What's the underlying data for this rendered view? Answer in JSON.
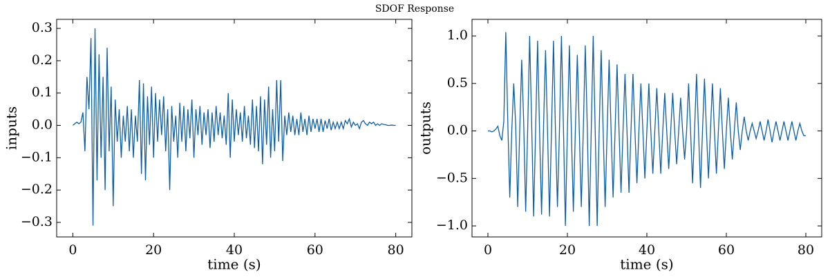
{
  "title": "SDOF Response",
  "chart_data": [
    {
      "type": "line",
      "x_label": "time (s)",
      "y_label": "inputs",
      "color": "#0c5da5",
      "xlim": [
        -4,
        84
      ],
      "ylim": [
        -0.345,
        0.328
      ],
      "xticks": [
        0,
        20,
        40,
        60,
        80
      ],
      "yticks": [
        {
          "value": -0.3,
          "label": "−0.3"
        },
        {
          "value": -0.2,
          "label": "−0.2"
        },
        {
          "value": -0.1,
          "label": "−0.1"
        },
        {
          "value": 0,
          "label": "0.0"
        },
        0.1,
        0.2,
        0.3
      ],
      "x": [
        0,
        0.5,
        1,
        1.5,
        2,
        2.5,
        3,
        3.5,
        4,
        4.5,
        5,
        5.5,
        6,
        6.5,
        7,
        7.5,
        8,
        8.5,
        9,
        9.5,
        10,
        10.5,
        11,
        11.5,
        12,
        12.5,
        13,
        13.5,
        14,
        14.5,
        15,
        15.5,
        16,
        16.5,
        17,
        17.5,
        18,
        18.5,
        19,
        19.5,
        20,
        20.5,
        21,
        21.5,
        22,
        22.5,
        23,
        23.5,
        24,
        24.5,
        25,
        25.5,
        26,
        26.5,
        27,
        27.5,
        28,
        28.5,
        29,
        29.5,
        30,
        30.5,
        31,
        31.5,
        32,
        32.5,
        33,
        33.5,
        34,
        34.5,
        35,
        35.5,
        36,
        36.5,
        37,
        37.5,
        38,
        38.5,
        39,
        39.5,
        40,
        40.5,
        41,
        41.5,
        42,
        42.5,
        43,
        43.5,
        44,
        44.5,
        45,
        45.5,
        46,
        46.5,
        47,
        47.5,
        48,
        48.5,
        49,
        49.5,
        50,
        50.5,
        51,
        51.5,
        52,
        52.5,
        53,
        53.5,
        54,
        54.5,
        55,
        55.5,
        56,
        56.5,
        57,
        57.5,
        58,
        58.5,
        59,
        59.5,
        60,
        60.5,
        61,
        61.5,
        62,
        62.5,
        63,
        63.5,
        64,
        64.5,
        65,
        65.5,
        66,
        66.5,
        67,
        67.5,
        68,
        68.5,
        69,
        69.5,
        70,
        70.5,
        71,
        71.5,
        72,
        72.5,
        73,
        73.5,
        74,
        74.5,
        75,
        75.5,
        76,
        76.5,
        77,
        77.5,
        78,
        78.5,
        79,
        79.5,
        80
      ],
      "values": [
        0,
        0.005,
        0.01,
        0.005,
        0.01,
        0.04,
        -0.08,
        0.15,
        0.05,
        0.27,
        -0.31,
        0.3,
        -0.17,
        0.22,
        -0.1,
        0.15,
        -0.2,
        0.24,
        -0.08,
        0.12,
        -0.25,
        0.08,
        -0.05,
        0.05,
        -0.1,
        0.03,
        -0.05,
        0.06,
        -0.08,
        0.05,
        -0.1,
        0.03,
        -0.05,
        0.14,
        -0.15,
        0.13,
        -0.17,
        0.09,
        -0.06,
        0.12,
        -0.1,
        0.1,
        -0.05,
        0.08,
        -0.03,
        0.09,
        -0.08,
        0.05,
        -0.2,
        0.06,
        -0.05,
        0.03,
        -0.1,
        0.07,
        -0.05,
        0.06,
        -0.08,
        0.05,
        -0.04,
        0.08,
        -0.1,
        0.05,
        -0.03,
        0.06,
        -0.06,
        0.04,
        -0.03,
        0.05,
        -0.07,
        0.04,
        -0.05,
        0.06,
        -0.03,
        0.04,
        -0.04,
        0.03,
        -0.06,
        0.1,
        -0.1,
        0.08,
        -0.05,
        0.05,
        -0.03,
        0.04,
        -0.05,
        0.06,
        -0.04,
        0.03,
        -0.06,
        0.08,
        -0.07,
        0.06,
        -0.08,
        0.09,
        -0.12,
        0.08,
        -0.06,
        0.12,
        -0.1,
        0.05,
        -0.08,
        0.14,
        -0.05,
        0.14,
        -0.11,
        0.03,
        -0.03,
        0.04,
        -0.02,
        0.03,
        -0.03,
        0.02,
        -0.03,
        0.04,
        -0.02,
        0.02,
        -0.03,
        0.03,
        -0.02,
        0.02,
        -0.01,
        0.02,
        -0.02,
        0.02,
        -0.02,
        0.015,
        -0.01,
        0.02,
        -0.015,
        0.01,
        -0.01,
        0.01,
        -0.01,
        0.01,
        -0.01,
        0.015,
        0.005,
        0.02,
        -0.005,
        0.01,
        0,
        0.005,
        -0.01,
        0.01,
        0.015,
        0.005,
        0,
        0.01,
        0.005,
        0.01,
        0,
        0.005,
        0,
        0.005,
        0.003,
        0.002,
        0,
        0,
        0.001,
        0,
        0
      ]
    },
    {
      "type": "line",
      "x_label": "time (s)",
      "y_label": "outputs",
      "color": "#0c5da5",
      "xlim": [
        -4,
        84
      ],
      "ylim": [
        -1.116,
        1.175
      ],
      "xticks": [
        0,
        20,
        40,
        60,
        80
      ],
      "yticks": [
        {
          "value": -1,
          "label": "−1.0"
        },
        {
          "value": -0.5,
          "label": "−0.5"
        },
        {
          "value": 0,
          "label": "0.0"
        },
        0.5,
        {
          "value": 1,
          "label": "1.0"
        }
      ],
      "x": [
        0,
        0.5,
        1,
        1.5,
        2,
        2.5,
        3,
        3.5,
        4,
        4.5,
        5,
        5.5,
        6,
        6.5,
        7,
        7.5,
        8,
        8.5,
        9,
        9.5,
        10,
        10.5,
        11,
        11.5,
        12,
        12.5,
        13,
        13.5,
        14,
        14.5,
        15,
        15.5,
        16,
        16.5,
        17,
        17.5,
        18,
        18.5,
        19,
        19.5,
        20,
        20.5,
        21,
        21.5,
        22,
        22.5,
        23,
        23.5,
        24,
        24.5,
        25,
        25.5,
        26,
        26.5,
        27,
        27.5,
        28,
        28.5,
        29,
        29.5,
        30,
        30.5,
        31,
        31.5,
        32,
        32.5,
        33,
        33.5,
        34,
        34.5,
        35,
        35.5,
        36,
        36.5,
        37,
        37.5,
        38,
        38.5,
        39,
        39.5,
        40,
        40.5,
        41,
        41.5,
        42,
        42.5,
        43,
        43.5,
        44,
        44.5,
        45,
        45.5,
        46,
        46.5,
        47,
        47.5,
        48,
        48.5,
        49,
        49.5,
        50,
        50.5,
        51,
        51.5,
        52,
        52.5,
        53,
        53.5,
        54,
        54.5,
        55,
        55.5,
        56,
        56.5,
        57,
        57.5,
        58,
        58.5,
        59,
        59.5,
        60,
        60.5,
        61,
        61.5,
        62,
        62.5,
        63,
        63.5,
        64,
        64.5,
        65,
        65.5,
        66,
        66.5,
        67,
        67.5,
        68,
        68.5,
        69,
        69.5,
        70,
        70.5,
        71,
        71.5,
        72,
        72.5,
        73,
        73.5,
        74,
        74.5,
        75,
        75.5,
        76,
        76.5,
        77,
        77.5,
        78,
        78.5,
        79,
        79.5,
        80
      ],
      "values": [
        0,
        0,
        -0.01,
        0,
        0.02,
        0.05,
        -0.05,
        -0.1,
        0.1,
        1.04,
        0.1,
        -0.7,
        0,
        0.5,
        0.05,
        -0.8,
        0,
        0.75,
        0.1,
        -0.85,
        0,
        1.0,
        0.1,
        -0.9,
        0,
        0.95,
        0,
        -0.88,
        0.05,
        0.85,
        0,
        -0.9,
        0,
        0.95,
        0,
        -0.8,
        0,
        1.0,
        0.05,
        -1.0,
        0,
        0.9,
        0,
        -0.85,
        0,
        0.8,
        0,
        -0.8,
        0,
        0.9,
        0.05,
        -1.0,
        0,
        1.0,
        0,
        -1.0,
        0,
        0.85,
        0,
        -0.8,
        0,
        0.75,
        0,
        -0.7,
        0,
        0.7,
        0,
        -0.65,
        0,
        0.6,
        0,
        -0.65,
        0,
        0.6,
        0,
        -0.55,
        0,
        0.5,
        0,
        -0.5,
        0,
        0.5,
        0,
        -0.45,
        0,
        0.45,
        0,
        -0.45,
        0,
        0.4,
        0,
        -0.4,
        0,
        0.4,
        0,
        -0.35,
        0,
        0.35,
        0,
        -0.3,
        0,
        0.5,
        0,
        -0.55,
        0,
        0.6,
        0,
        -0.6,
        0,
        0.55,
        0,
        -0.5,
        0,
        0.5,
        0,
        -0.45,
        0,
        0.45,
        0,
        -0.4,
        0,
        0.35,
        0,
        -0.3,
        0,
        0.3,
        0,
        -0.2,
        0,
        0.15,
        0,
        -0.1,
        0,
        0.08,
        0,
        -0.08,
        0,
        0.1,
        0,
        -0.1,
        0,
        0.12,
        0,
        -0.12,
        0,
        0.1,
        0,
        -0.1,
        0,
        0.1,
        0,
        -0.1,
        0,
        0.1,
        0,
        -0.1,
        0,
        0.08,
        0,
        -0.05,
        -0.05
      ]
    }
  ]
}
